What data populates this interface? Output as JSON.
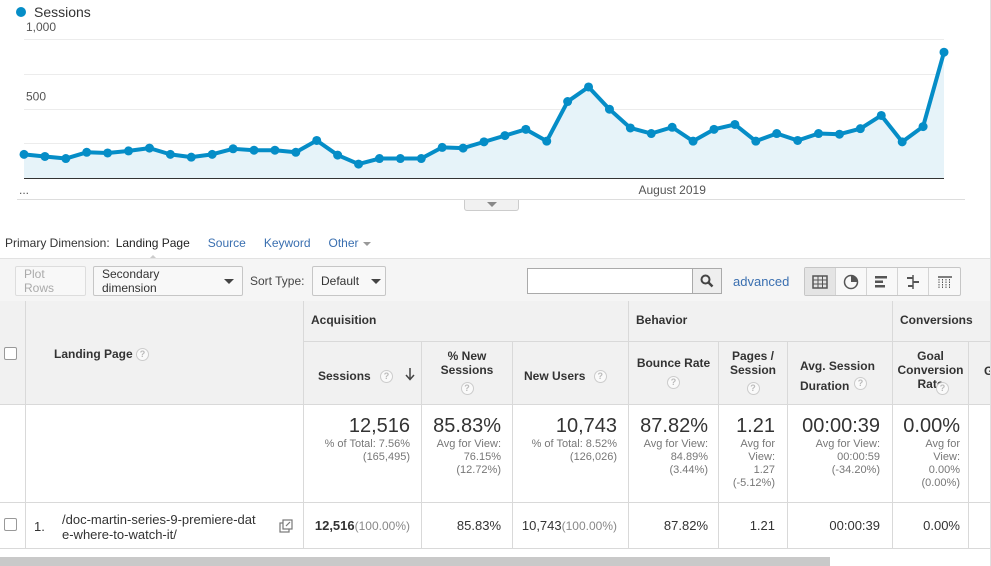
{
  "chart_data": {
    "type": "area",
    "series": [
      {
        "name": "Sessions",
        "color": "#058dc7",
        "values": [
          170,
          155,
          140,
          185,
          180,
          195,
          215,
          170,
          150,
          170,
          210,
          200,
          200,
          185,
          270,
          165,
          100,
          140,
          140,
          140,
          220,
          215,
          260,
          305,
          350,
          265,
          550,
          655,
          495,
          360,
          320,
          365,
          265,
          350,
          385,
          265,
          320,
          270,
          320,
          315,
          355,
          450,
          260,
          370,
          905
        ]
      }
    ],
    "y_ticks": [
      "1,000",
      "500"
    ],
    "ylim": [
      0,
      1000
    ],
    "x_labels": [
      {
        "text": "...",
        "index": 0
      },
      {
        "text": "August 2019",
        "index": 31
      }
    ],
    "grid": true
  },
  "legend": {
    "label": "Sessions"
  },
  "primary_dimension": {
    "label": "Primary Dimension:",
    "active": "Landing Page",
    "links": [
      "Source",
      "Keyword"
    ],
    "other": "Other"
  },
  "toolbar": {
    "plot_rows": "Plot Rows",
    "secondary_dimension": "Secondary dimension",
    "sort_type_label": "Sort Type:",
    "sort_type_value": "Default",
    "search_value": "",
    "advanced": "advanced"
  },
  "table": {
    "groups": {
      "acquisition": "Acquisition",
      "behavior": "Behavior",
      "conversions": "Conversions"
    },
    "headers": {
      "landing_page": "Landing Page",
      "sessions": "Sessions",
      "new_sessions": "% New Sessions",
      "new_users": "New Users",
      "bounce_rate": "Bounce Rate",
      "pages_session": "Pages / Session",
      "avg_duration": "Avg. Session Duration",
      "goal_conv": "Goal Conversion Rate",
      "overflow": "G"
    },
    "help_glyph": "?",
    "totals": {
      "sessions": {
        "value": "12,516",
        "line1": "% of Total: 7.56%",
        "line2": "(165,495)"
      },
      "new_sessions": {
        "value": "85.83%",
        "line1": "Avg for View:",
        "line2": "76.15%",
        "line3": "(12.72%)"
      },
      "new_users": {
        "value": "10,743",
        "line1": "% of Total: 8.52%",
        "line2": "(126,026)"
      },
      "bounce_rate": {
        "value": "87.82%",
        "line1": "Avg for View:",
        "line2": "84.89%",
        "line3": "(3.44%)"
      },
      "pages_session": {
        "value": "1.21",
        "line1": "Avg for",
        "line2": "View:",
        "line3": "1.27",
        "line4": "(-5.12%)"
      },
      "avg_duration": {
        "value": "00:00:39",
        "line1": "Avg for View:",
        "line2": "00:00:59",
        "line3": "(-34.20%)"
      },
      "goal_conv": {
        "value": "0.00%",
        "line1": "Avg for",
        "line2": "View:",
        "line3": "0.00%",
        "line4": "(0.00%)"
      }
    },
    "rows": [
      {
        "index": "1.",
        "page_line1": "/doc-martin-series-9-premiere-dat",
        "page_line2": "e-where-to-watch-it/",
        "sessions": "12,516",
        "sessions_pct": "(100.00%)",
        "new_sessions": "85.83%",
        "new_users": "10,743",
        "new_users_pct": "(100.00%)",
        "bounce_rate": "87.82%",
        "pages_session": "1.21",
        "avg_duration": "00:00:39",
        "goal_conv": "0.00%"
      }
    ]
  }
}
